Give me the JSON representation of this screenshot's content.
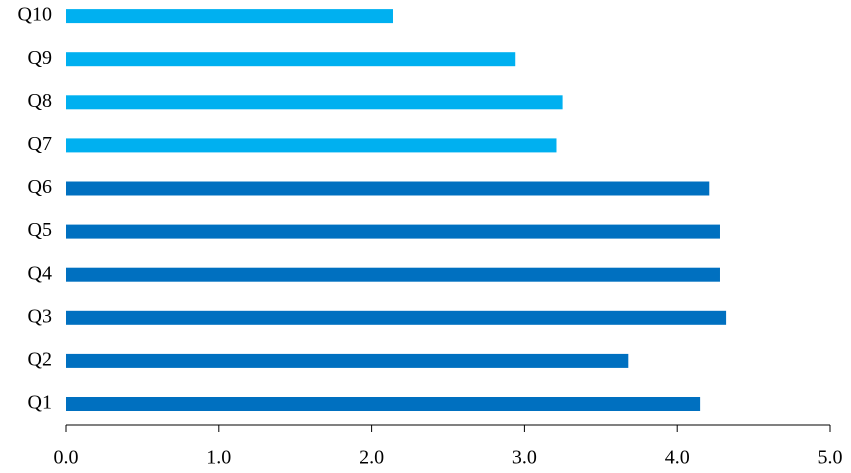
{
  "chart_data": {
    "type": "bar",
    "orientation": "horizontal",
    "categories": [
      "Q1",
      "Q2",
      "Q3",
      "Q4",
      "Q5",
      "Q6",
      "Q7",
      "Q8",
      "Q9",
      "Q10"
    ],
    "values": [
      4.15,
      3.68,
      4.32,
      4.28,
      4.28,
      4.21,
      3.21,
      3.25,
      2.94,
      2.14
    ],
    "colors": [
      "#0070c0",
      "#0070c0",
      "#0070c0",
      "#0070c0",
      "#0070c0",
      "#0070c0",
      "#00b0f0",
      "#00b0f0",
      "#00b0f0",
      "#00b0f0"
    ],
    "xlim": [
      0,
      5
    ],
    "xticks": [
      {
        "value": 0,
        "label": "0.0"
      },
      {
        "value": 1,
        "label": "1.0"
      },
      {
        "value": 2,
        "label": "2.0"
      },
      {
        "value": 3,
        "label": "3.0"
      },
      {
        "value": 4,
        "label": "4.0"
      },
      {
        "value": 5,
        "label": "5.0"
      }
    ],
    "grid": false
  }
}
